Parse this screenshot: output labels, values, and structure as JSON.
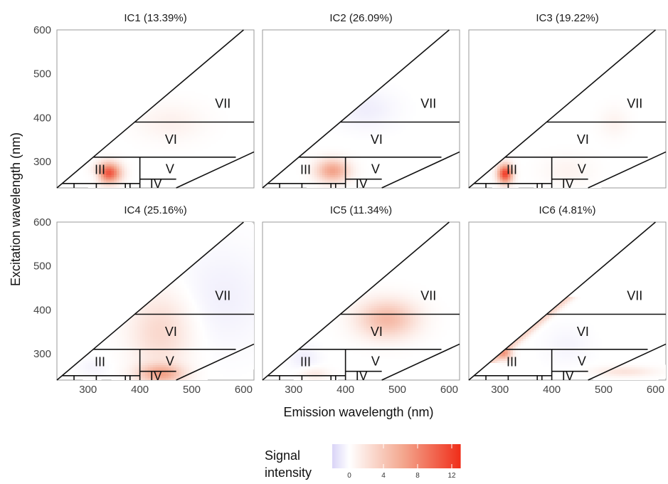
{
  "chart_data": {
    "type": "heatmap",
    "xlabel": "Emission wavelength (nm)",
    "ylabel": "Excitation wavelength (nm)",
    "xlim": [
      240,
      620
    ],
    "ylim": [
      240,
      600
    ],
    "xticks": [
      300,
      400,
      500,
      600
    ],
    "yticks": [
      300,
      400,
      500,
      600
    ],
    "grid": false,
    "region_labels": [
      "III",
      "IV",
      "V",
      "VI",
      "VII"
    ],
    "region_boundaries": {
      "emission_equals_excitation_diagonal": true,
      "excitation_lines_nm": [
        250,
        260,
        310,
        390
      ],
      "emission_vertical_nm": 400,
      "second_order_line_start_nm": [
        470,
        250
      ]
    },
    "legend": {
      "title_lines": [
        "Signal",
        "intensity"
      ],
      "ticks": [
        0,
        4,
        8,
        12
      ],
      "range": [
        -2,
        13
      ],
      "colors": [
        "#d9d4f7",
        "#ffffff",
        "#f3a48b",
        "#f02e1a"
      ],
      "placement": "bottom-center"
    },
    "panels": [
      {
        "title": "IC1 (13.39%)",
        "blobs": [
          {
            "em": 340,
            "ex": 275,
            "sem": 16,
            "sex": 16,
            "v": 11
          },
          {
            "em": 318,
            "ex": 268,
            "sem": 10,
            "sex": 10,
            "v": -1.5
          },
          {
            "em": 460,
            "ex": 390,
            "sem": 45,
            "sex": 30,
            "v": 1
          }
        ]
      },
      {
        "title": "IC2 (26.09%)",
        "blobs": [
          {
            "em": 375,
            "ex": 280,
            "sem": 22,
            "sex": 18,
            "v": 6.5
          },
          {
            "em": 440,
            "ex": 420,
            "sem": 40,
            "sex": 30,
            "v": -0.8
          }
        ]
      },
      {
        "title": "IC3 (19.22%)",
        "blobs": [
          {
            "em": 310,
            "ex": 273,
            "sem": 10,
            "sex": 15,
            "v": 12
          },
          {
            "em": 430,
            "ex": 280,
            "sem": 35,
            "sex": 25,
            "v": 0.8
          },
          {
            "em": 520,
            "ex": 390,
            "sem": 20,
            "sex": 25,
            "v": 0.8
          }
        ]
      },
      {
        "title": "IC4 (25.16%)",
        "blobs": [
          {
            "em": 440,
            "ex": 350,
            "sem": 40,
            "sex": 60,
            "v": 2.8
          },
          {
            "em": 440,
            "ex": 255,
            "sem": 30,
            "sex": 15,
            "v": 6
          },
          {
            "em": 560,
            "ex": 430,
            "sem": 60,
            "sex": 80,
            "v": -0.7
          },
          {
            "em": 310,
            "ex": 270,
            "sem": 20,
            "sex": 15,
            "v": -0.5
          }
        ]
      },
      {
        "title": "IC5 (11.34%)",
        "blobs": [
          {
            "em": 480,
            "ex": 380,
            "sem": 40,
            "sex": 30,
            "v": 5
          },
          {
            "em": 340,
            "ex": 255,
            "sem": 20,
            "sex": 10,
            "v": 1.5
          },
          {
            "em": 320,
            "ex": 290,
            "sem": 20,
            "sex": 20,
            "v": -0.8
          }
        ]
      },
      {
        "title": "IC6 (4.81%)",
        "diagonal_ridge": {
          "v": 3.2,
          "width": 5,
          "min_ex": 280,
          "max_ex": 430
        },
        "blobs": [
          {
            "em": 310,
            "ex": 300,
            "sem": 10,
            "sex": 10,
            "v": 5
          },
          {
            "em": 540,
            "ex": 260,
            "sem": 40,
            "sex": 8,
            "v": 2
          },
          {
            "em": 430,
            "ex": 320,
            "sem": 30,
            "sex": 30,
            "v": -0.5
          }
        ]
      }
    ]
  }
}
